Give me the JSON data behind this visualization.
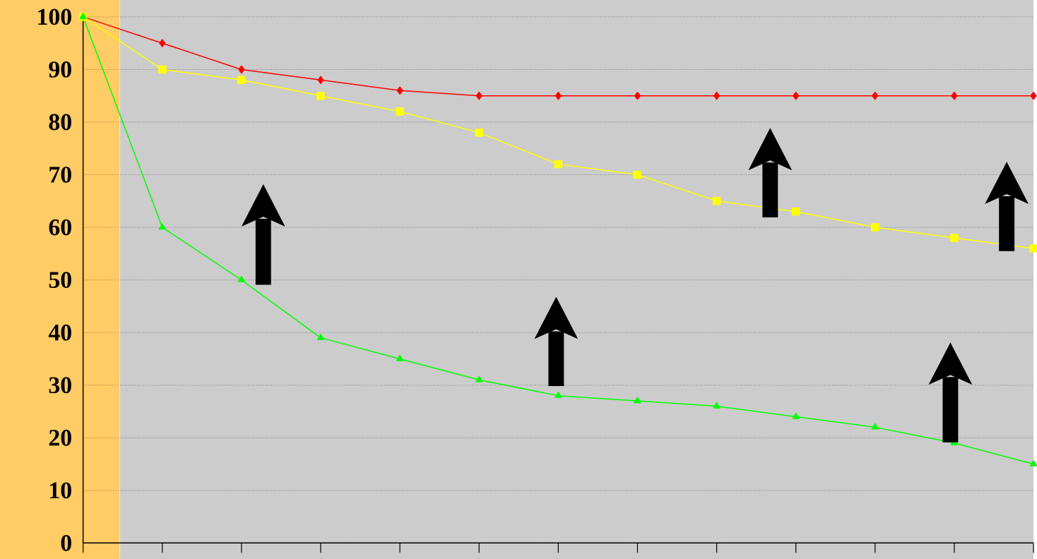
{
  "chart_data": {
    "type": "line",
    "categories": [
      null,
      null,
      null,
      null,
      null,
      null,
      null,
      null,
      null,
      null,
      null,
      null,
      null
    ],
    "series": [
      {
        "color": "#ff0000",
        "marker": "diamond",
        "values": [
          100,
          95,
          90,
          88,
          86,
          85,
          85,
          85,
          85,
          85,
          85,
          85,
          85
        ]
      },
      {
        "color": "#ffff00",
        "marker": "square",
        "values": [
          100,
          90,
          88,
          85,
          82,
          78,
          72,
          70,
          65,
          63,
          60,
          58,
          56
        ]
      },
      {
        "color": "#00ff00",
        "marker": "triangle",
        "values": [
          100,
          60,
          50,
          39,
          35,
          31,
          28,
          27,
          26,
          24,
          22,
          19,
          15
        ]
      }
    ],
    "ylim": [
      0,
      100
    ],
    "yticks": [
      0,
      10,
      20,
      30,
      40,
      50,
      60,
      70,
      80,
      90,
      100
    ],
    "grid": "y",
    "tick_labels": "y"
  }
}
